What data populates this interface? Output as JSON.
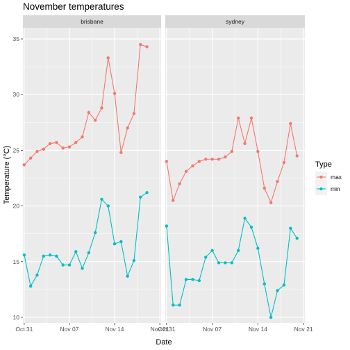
{
  "chart_data": {
    "type": "line",
    "title": "November temperatures",
    "xlabel": "Date",
    "ylabel": "Temperature (°C)",
    "ylim": [
      9.5,
      36
    ],
    "y_ticks": [
      10,
      15,
      20,
      25,
      30,
      35
    ],
    "x_ticks": [
      "Oct 31",
      "Nov 07",
      "Nov 14",
      "Nov 21"
    ],
    "x_range_days": [
      -0.2,
      21.2
    ],
    "grid": true,
    "legend": {
      "title": "Type",
      "position": "right",
      "entries": [
        "max",
        "min"
      ]
    },
    "colors": {
      "max": "#F8766D",
      "min": "#00BFC4"
    },
    "panels": [
      {
        "name": "brisbane",
        "series": [
          {
            "name": "max",
            "values": [
              23.7,
              24.3,
              24.9,
              25.1,
              25.6,
              25.7,
              25.2,
              25.3,
              25.7,
              26.2,
              28.4,
              27.7,
              28.8,
              33.3,
              30.1,
              24.8,
              27.0,
              28.3,
              34.5,
              34.3
            ]
          },
          {
            "name": "min",
            "values": [
              15.6,
              12.8,
              13.8,
              15.5,
              15.6,
              15.5,
              14.7,
              14.7,
              15.9,
              14.4,
              15.8,
              17.6,
              20.6,
              20.0,
              16.6,
              16.8,
              13.7,
              15.1,
              20.8,
              21.2
            ]
          }
        ]
      },
      {
        "name": "sydney",
        "series": [
          {
            "name": "max",
            "values": [
              24.0,
              20.5,
              22.0,
              23.1,
              23.6,
              24.0,
              24.2,
              24.2,
              24.2,
              24.4,
              24.9,
              27.9,
              25.6,
              27.9,
              24.9,
              21.6,
              20.3,
              22.2,
              23.9,
              27.4,
              24.5
            ]
          },
          {
            "name": "min",
            "values": [
              18.2,
              11.1,
              11.1,
              13.4,
              13.4,
              13.3,
              15.4,
              16.0,
              14.9,
              14.9,
              14.9,
              16.0,
              18.9,
              18.1,
              16.2,
              13.0,
              10.0,
              12.4,
              12.9,
              18.0,
              17.1
            ]
          }
        ]
      }
    ]
  }
}
